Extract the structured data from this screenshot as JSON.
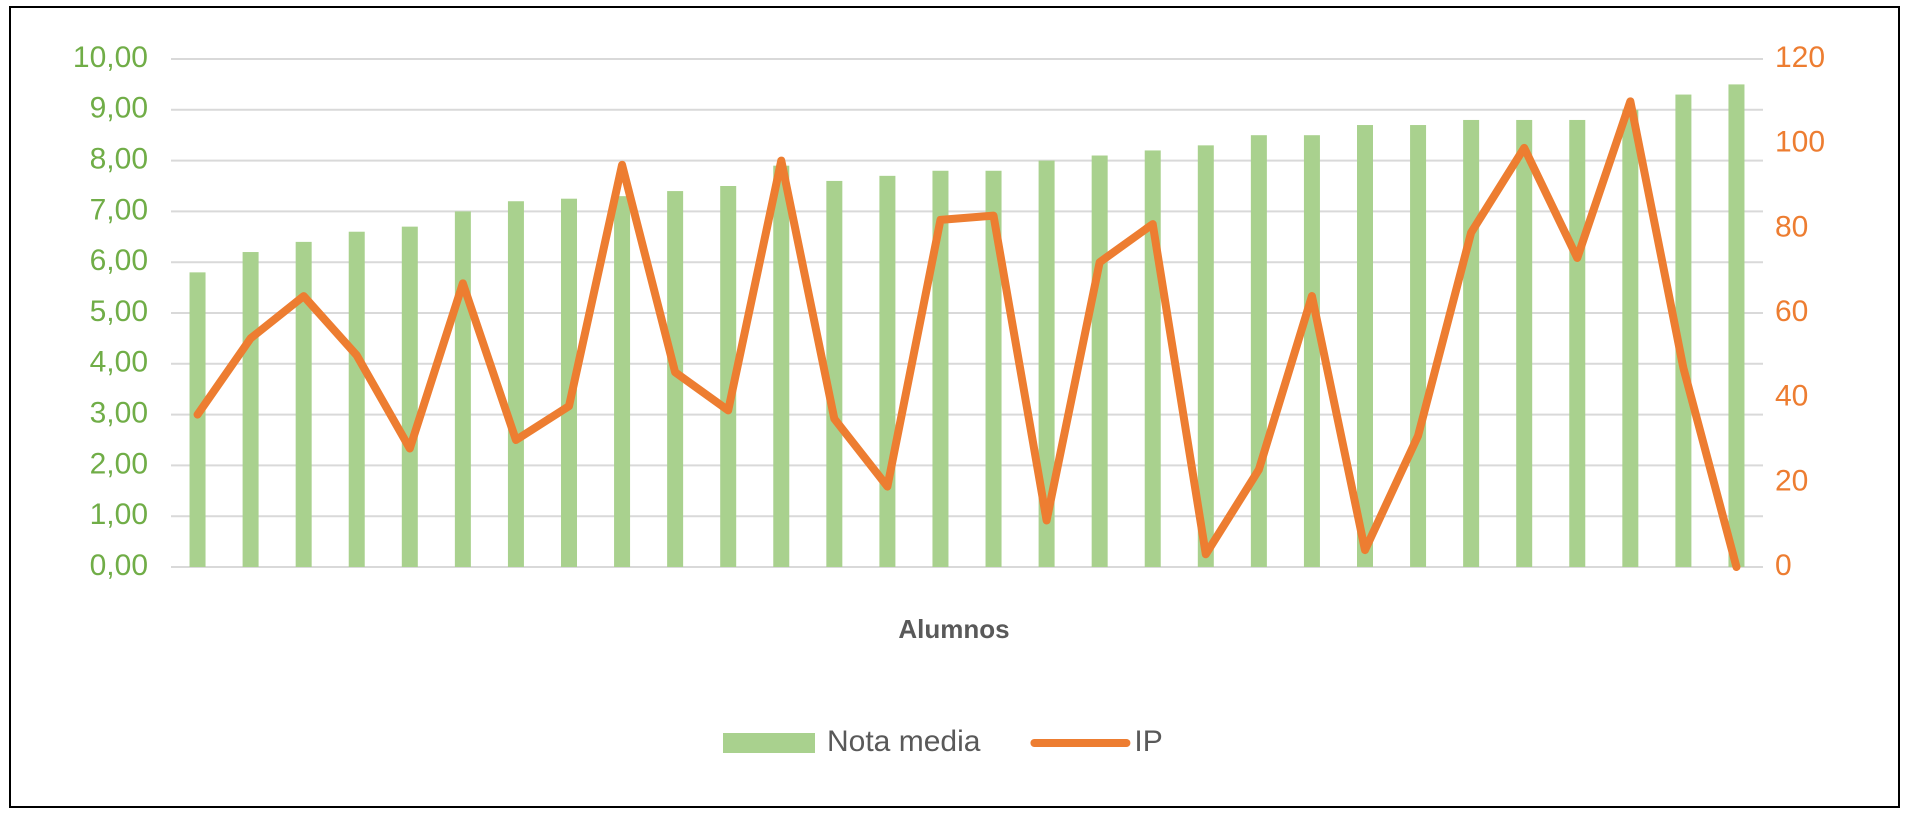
{
  "chart_data": {
    "type": "bar_line",
    "x_label": "Alumnos",
    "categories": [
      null,
      null,
      null,
      null,
      null,
      null,
      null,
      null,
      null,
      null,
      null,
      null,
      null,
      null,
      null,
      null,
      null,
      null,
      null,
      null,
      null,
      null,
      null,
      null,
      null,
      null,
      null,
      null,
      null,
      null
    ],
    "series": [
      {
        "name": "Nota media",
        "type": "bar",
        "color": "#a9d18e",
        "values": [
          5.8,
          6.2,
          6.4,
          6.6,
          6.7,
          7.0,
          7.2,
          7.25,
          7.3,
          7.4,
          7.5,
          7.9,
          7.6,
          7.7,
          7.8,
          7.8,
          8.0,
          8.1,
          8.2,
          8.3,
          8.5,
          8.5,
          8.7,
          8.7,
          8.8,
          8.8,
          8.8,
          9.0,
          9.3,
          9.5
        ]
      },
      {
        "name": "IP",
        "type": "line",
        "axis": "y2",
        "color": "#ed7d31",
        "values": [
          36,
          54,
          64,
          50,
          28,
          67,
          30,
          38,
          95,
          46,
          37,
          96,
          35,
          19,
          82,
          83,
          11,
          72,
          81,
          3,
          23,
          64,
          4,
          31,
          79,
          99,
          73,
          110,
          47,
          0
        ]
      }
    ],
    "ylim": [
      0,
      10
    ],
    "yticks": [
      {
        "value": 0,
        "label": "0,00"
      },
      {
        "value": 1,
        "label": "1,00"
      },
      {
        "value": 2,
        "label": "2,00"
      },
      {
        "value": 3,
        "label": "3,00"
      },
      {
        "value": 4,
        "label": "4,00"
      },
      {
        "value": 5,
        "label": "5,00"
      },
      {
        "value": 6,
        "label": "6,00"
      },
      {
        "value": 7,
        "label": "7,00"
      },
      {
        "value": 8,
        "label": "8,00"
      },
      {
        "value": 9,
        "label": "9,00"
      },
      {
        "value": 10,
        "label": "10,00"
      }
    ],
    "y2lim": [
      0,
      120
    ],
    "y2ticks": [
      0,
      20,
      40,
      60,
      80,
      100,
      120
    ],
    "ytick_color": "#70ad47",
    "y2tick_color": "#ed7d31",
    "grid": true,
    "legend": "bottom"
  }
}
